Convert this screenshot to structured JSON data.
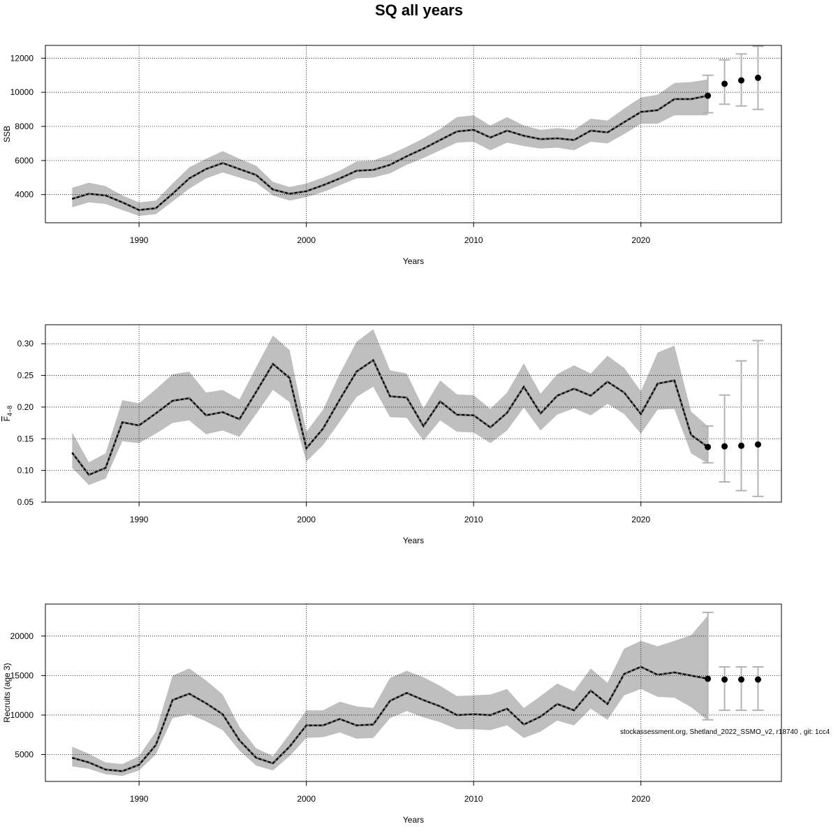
{
  "title": "SQ all years",
  "footnote": "stockassessment.org, Shetland_2022_SSMO_v2, r18740 , git: 1cc4",
  "colors": {
    "band": "#bfbfbf",
    "line": "#000000",
    "errorbar": "#b3b3b3",
    "grid": "#000000"
  },
  "chart_data": [
    {
      "type": "line",
      "xlabel": "Years",
      "ylabel": "SSB",
      "xlim": [
        1984.4,
        2028.4
      ],
      "ylim": [
        2350,
        12750
      ],
      "xticks": [
        1990,
        2000,
        2010,
        2020
      ],
      "yticks": [
        4000,
        6000,
        8000,
        10000,
        12000
      ],
      "ytick_labels": [
        "4000",
        "6000",
        "8000",
        "10000",
        "12000"
      ],
      "grid": true,
      "x": [
        1986,
        1987,
        1988,
        1989,
        1990,
        1991,
        1992,
        1993,
        1994,
        1995,
        1996,
        1997,
        1998,
        1999,
        2000,
        2001,
        2002,
        2003,
        2004,
        2005,
        2006,
        2007,
        2008,
        2009,
        2010,
        2011,
        2012,
        2013,
        2014,
        2015,
        2016,
        2017,
        2018,
        2019,
        2020,
        2021,
        2022,
        2023,
        2024
      ],
      "estimate": [
        3750,
        4050,
        3950,
        3550,
        3100,
        3200,
        4050,
        4950,
        5500,
        5850,
        5500,
        5150,
        4300,
        4050,
        4200,
        4550,
        4950,
        5400,
        5450,
        5750,
        6250,
        6700,
        7200,
        7700,
        7800,
        7350,
        7750,
        7450,
        7250,
        7300,
        7200,
        7750,
        7650,
        8250,
        8850,
        8950,
        9600,
        9600,
        9800
      ],
      "lower": [
        3250,
        3550,
        3450,
        3100,
        2750,
        2850,
        3600,
        4350,
        4950,
        5300,
        5000,
        4700,
        3950,
        3650,
        3850,
        4150,
        4550,
        4950,
        5000,
        5250,
        5750,
        6150,
        6600,
        7050,
        7100,
        6600,
        7050,
        6850,
        6700,
        6750,
        6600,
        7100,
        7000,
        7550,
        8150,
        8150,
        8650,
        8650,
        8650
      ],
      "upper": [
        4400,
        4700,
        4500,
        3950,
        3550,
        3650,
        4650,
        5600,
        6100,
        6550,
        6100,
        5700,
        4750,
        4450,
        4650,
        5000,
        5400,
        5950,
        6000,
        6350,
        6800,
        7300,
        7850,
        8550,
        8650,
        8050,
        8550,
        8050,
        7800,
        7900,
        7800,
        8450,
        8350,
        9050,
        9700,
        9850,
        10550,
        10600,
        10750
      ],
      "forecast": {
        "x": [
          2024,
          2025,
          2026,
          2027
        ],
        "values": [
          9800,
          10500,
          10700,
          10850
        ],
        "lower": [
          8800,
          9300,
          9200,
          9000
        ],
        "upper": [
          11000,
          11900,
          12250,
          12700
        ]
      }
    },
    {
      "type": "line",
      "xlabel": "Years",
      "ylabel": "F4-8",
      "ylabel_main": "F",
      "ylabel_sub": "4−8",
      "xlim": [
        1984.4,
        2028.4
      ],
      "ylim": [
        0.05,
        0.33
      ],
      "xticks": [
        1990,
        2000,
        2010,
        2020
      ],
      "yticks": [
        0.05,
        0.1,
        0.15,
        0.2,
        0.25,
        0.3
      ],
      "ytick_labels": [
        "0.05",
        "0.10",
        "0.15",
        "0.20",
        "0.25",
        "0.30"
      ],
      "grid": true,
      "x": [
        1986,
        1987,
        1988,
        1989,
        1990,
        1991,
        1992,
        1993,
        1994,
        1995,
        1996,
        1997,
        1998,
        1999,
        2000,
        2001,
        2002,
        2003,
        2004,
        2005,
        2006,
        2007,
        2008,
        2009,
        2010,
        2011,
        2012,
        2013,
        2014,
        2015,
        2016,
        2017,
        2018,
        2019,
        2020,
        2021,
        2022,
        2023,
        2024
      ],
      "estimate": [
        0.128,
        0.093,
        0.104,
        0.176,
        0.171,
        0.19,
        0.21,
        0.214,
        0.187,
        0.192,
        0.181,
        0.224,
        0.268,
        0.246,
        0.135,
        0.166,
        0.212,
        0.256,
        0.274,
        0.217,
        0.215,
        0.17,
        0.209,
        0.188,
        0.187,
        0.168,
        0.191,
        0.232,
        0.19,
        0.218,
        0.229,
        0.218,
        0.24,
        0.223,
        0.189,
        0.237,
        0.242,
        0.156,
        0.137
      ],
      "lower": [
        0.104,
        0.077,
        0.087,
        0.146,
        0.143,
        0.158,
        0.175,
        0.179,
        0.157,
        0.163,
        0.153,
        0.189,
        0.227,
        0.208,
        0.114,
        0.14,
        0.177,
        0.216,
        0.232,
        0.184,
        0.183,
        0.147,
        0.179,
        0.161,
        0.16,
        0.143,
        0.163,
        0.199,
        0.163,
        0.188,
        0.198,
        0.187,
        0.205,
        0.189,
        0.158,
        0.196,
        0.197,
        0.127,
        0.111
      ],
      "upper": [
        0.16,
        0.113,
        0.127,
        0.211,
        0.206,
        0.228,
        0.252,
        0.256,
        0.223,
        0.227,
        0.212,
        0.263,
        0.313,
        0.29,
        0.161,
        0.196,
        0.253,
        0.303,
        0.323,
        0.258,
        0.253,
        0.198,
        0.242,
        0.22,
        0.219,
        0.197,
        0.223,
        0.269,
        0.221,
        0.252,
        0.266,
        0.253,
        0.281,
        0.262,
        0.225,
        0.286,
        0.297,
        0.193,
        0.17
      ],
      "forecast": {
        "x": [
          2024,
          2025,
          2026,
          2027
        ],
        "values": [
          0.137,
          0.138,
          0.139,
          0.141
        ],
        "lower": [
          0.112,
          0.082,
          0.068,
          0.059
        ],
        "upper": [
          0.17,
          0.219,
          0.273,
          0.305
        ]
      }
    },
    {
      "type": "line",
      "xlabel": "Years",
      "ylabel": "Recruits (age 3)",
      "xlim": [
        1984.4,
        2028.4
      ],
      "ylim": [
        1600,
        24050
      ],
      "xticks": [
        1990,
        2000,
        2010,
        2020
      ],
      "yticks": [
        5000,
        10000,
        15000,
        20000
      ],
      "ytick_labels": [
        "5000",
        "10000",
        "15000",
        "20000"
      ],
      "grid": true,
      "x": [
        1986,
        1987,
        1988,
        1989,
        1990,
        1991,
        1992,
        1993,
        1994,
        1995,
        1996,
        1997,
        1998,
        1999,
        2000,
        2001,
        2002,
        2003,
        2004,
        2005,
        2006,
        2007,
        2008,
        2009,
        2010,
        2011,
        2012,
        2013,
        2014,
        2015,
        2016,
        2017,
        2018,
        2019,
        2020,
        2021,
        2022,
        2023,
        2024
      ],
      "estimate": [
        4600,
        4000,
        3100,
        2900,
        3700,
        6200,
        11900,
        12700,
        11500,
        10100,
        6800,
        4600,
        3900,
        6000,
        8700,
        8700,
        9500,
        8700,
        8800,
        11800,
        12800,
        11900,
        11100,
        10000,
        10100,
        10000,
        10800,
        8800,
        9800,
        11400,
        10600,
        13100,
        11400,
        15200,
        16100,
        15100,
        15400,
        15000,
        14600
      ],
      "lower": [
        3500,
        3200,
        2500,
        2300,
        3000,
        5000,
        9600,
        10100,
        9200,
        8100,
        5500,
        3600,
        3000,
        4800,
        7100,
        7200,
        7800,
        7000,
        7100,
        9600,
        10500,
        9700,
        9100,
        8200,
        8200,
        8100,
        8700,
        7100,
        7900,
        9300,
        8700,
        10800,
        9400,
        12500,
        13300,
        12300,
        12200,
        11000,
        9300
      ],
      "upper": [
        6000,
        5100,
        4000,
        3800,
        4800,
        7900,
        15000,
        15900,
        14400,
        12600,
        8500,
        5800,
        4800,
        7600,
        10600,
        10600,
        11700,
        11100,
        10900,
        14700,
        15600,
        14800,
        13700,
        12400,
        12500,
        12600,
        13300,
        10900,
        12400,
        14000,
        13000,
        15900,
        14100,
        18400,
        19400,
        18700,
        19400,
        20100,
        22600
      ],
      "forecast": {
        "x": [
          2024,
          2025,
          2026,
          2027
        ],
        "values": [
          14600,
          14500,
          14500,
          14500
        ],
        "lower": [
          9400,
          10600,
          10600,
          10600
        ],
        "upper": [
          23000,
          16100,
          16100,
          16100
        ]
      }
    }
  ]
}
